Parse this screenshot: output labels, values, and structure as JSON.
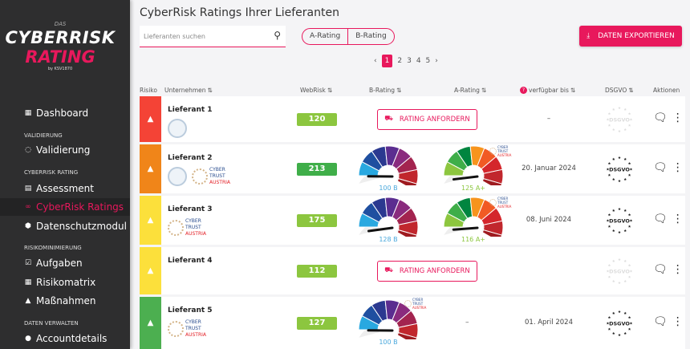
{
  "logo": {
    "das": "DAS",
    "line1": "CYBERRISK",
    "line2": "RATING",
    "by": "by KSV1870"
  },
  "sidebar": {
    "items": [
      {
        "label": "Dashboard",
        "icon": "dashboard-icon",
        "glyph": "▦"
      },
      {
        "section": "VALIDIERUNG"
      },
      {
        "label": "Validierung",
        "icon": "shield-outline-icon",
        "glyph": "◌"
      },
      {
        "section": "CYBERRISK RATING"
      },
      {
        "label": "Assessment",
        "icon": "chart-icon",
        "glyph": "▤"
      },
      {
        "label": "CyberRisk Ratings",
        "icon": "link-icon",
        "glyph": "∞",
        "active": true
      },
      {
        "label": "Datenschutzmodul",
        "icon": "shield-icon",
        "glyph": "⬢"
      },
      {
        "section": "RISIKOMINIMIERUNG"
      },
      {
        "label": "Aufgaben",
        "icon": "calendar-check-icon",
        "glyph": "☑"
      },
      {
        "label": "Risikomatrix",
        "icon": "grid-icon",
        "glyph": "▦"
      },
      {
        "label": "Maßnahmen",
        "icon": "warning-icon",
        "glyph": "▲"
      },
      {
        "section": "DATEN VERWALTEN"
      },
      {
        "label": "Accountdetails",
        "icon": "account-icon",
        "glyph": "●"
      }
    ]
  },
  "header": {
    "title": "CyberRisk Ratings Ihrer Lieferanten",
    "search_placeholder": "Lieferanten suchen",
    "filters": [
      "A-Rating",
      "B-Rating"
    ],
    "export_label": "DATEN EXPORTIEREN"
  },
  "pagination": {
    "pages": [
      "1",
      "2",
      "3",
      "4",
      "5"
    ],
    "current": "1",
    "prev": "‹",
    "next": "›"
  },
  "columns": {
    "risk": "Risiko",
    "company": "Unternehmen",
    "webrisk": "WebRisk",
    "brating": "B-Rating",
    "arating": "A-Rating",
    "available": "verfügbar bis",
    "dsgvo": "DSGVO",
    "actions": "Aktionen",
    "sort": "⇅",
    "help": "?"
  },
  "colors": {
    "accent": "#e8185c",
    "red": "#f44336",
    "orange": "#f08519",
    "yellow": "#fce03b",
    "green": "#4caf50",
    "webrisk_lime": "#8cc63f",
    "webrisk_green": "#3fae49"
  },
  "request_label": "RATING ANFORDERN",
  "dsgvo_label": "DSGVO",
  "cybertrust": {
    "l1": "CYBER",
    "l2": "TRUST",
    "l3": "AUSTRIA"
  },
  "rows": [
    {
      "name": "Lieferant 1",
      "risk": "red",
      "iso": true,
      "cybertrust": false,
      "webrisk": "120",
      "webrisk_color": "lime",
      "b": null,
      "a": null,
      "available": "–",
      "dsgvo_active": false
    },
    {
      "name": "Lieferant 2",
      "risk": "orange",
      "iso": true,
      "cybertrust": true,
      "webrisk": "213",
      "webrisk_color": "green",
      "b": {
        "value": 100,
        "label": "100 B"
      },
      "a": {
        "value": 125,
        "label": "125 A+"
      },
      "available": "20. Januar 2024",
      "dsgvo_active": true
    },
    {
      "name": "Lieferant 3",
      "risk": "yellow",
      "iso": false,
      "cybertrust": true,
      "webrisk": "175",
      "webrisk_color": "lime",
      "b": {
        "value": 128,
        "label": "128 B"
      },
      "a": {
        "value": 116,
        "label": "116 A+"
      },
      "available": "08. Juni 2024",
      "dsgvo_active": true
    },
    {
      "name": "Lieferant 4",
      "risk": "yellow",
      "iso": false,
      "cybertrust": false,
      "webrisk": "112",
      "webrisk_color": "lime",
      "b": null,
      "a": null,
      "available": "",
      "dsgvo_active": false
    },
    {
      "name": "Lieferant 5",
      "risk": "green",
      "iso": false,
      "cybertrust": true,
      "webrisk": "127",
      "webrisk_color": "lime",
      "b": {
        "value": 100,
        "label": "100 B",
        "badge": true
      },
      "a": null,
      "a_text": "–",
      "available": "01. April 2024",
      "dsgvo_active": true
    }
  ]
}
